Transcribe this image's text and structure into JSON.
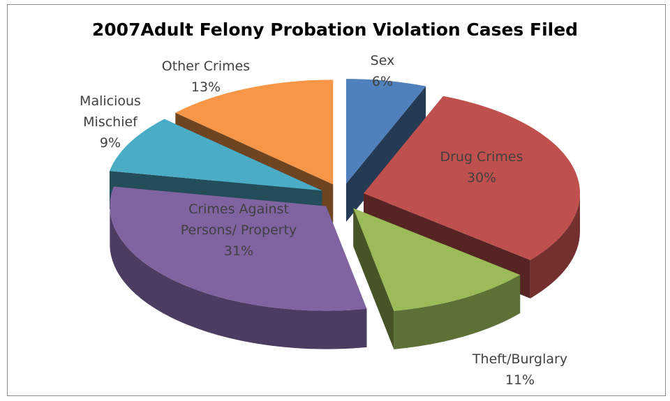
{
  "chart_data": {
    "type": "pie3d",
    "title": "2007Adult Felony Probation Violation Cases Filed",
    "categories": [
      "Sex",
      "Drug Crimes",
      "Theft/Burglary",
      "Crimes Against Persons/ Property",
      "Malicious Mischief",
      "Other Crimes"
    ],
    "values": [
      6,
      30,
      11,
      31,
      9,
      13
    ],
    "value_labels": [
      "6%",
      "30%",
      "11%",
      "31%",
      "9%",
      "13%"
    ],
    "colors": [
      "#4f81bd",
      "#c0504d",
      "#9bbb59",
      "#8064a2",
      "#4bacc6",
      "#f79646"
    ]
  }
}
